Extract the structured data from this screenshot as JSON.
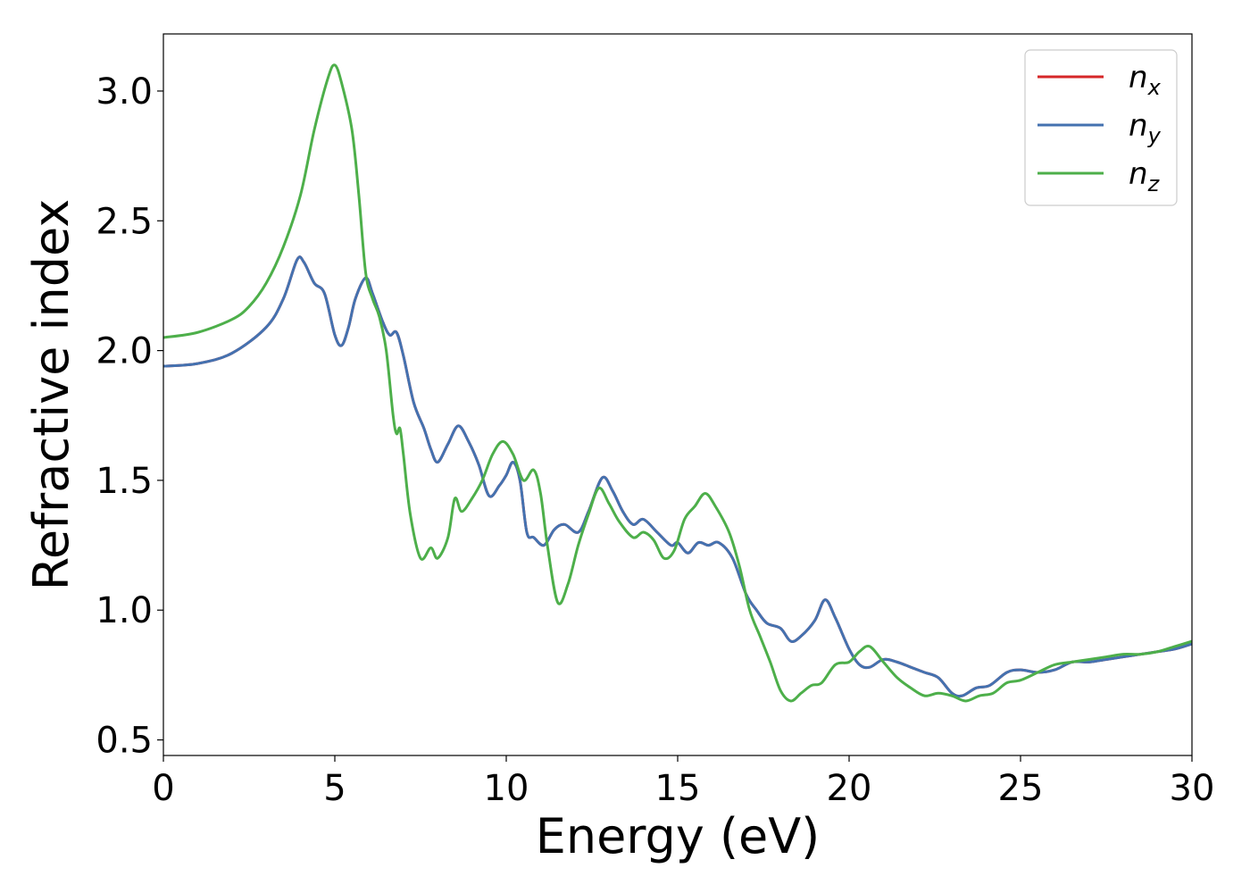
{
  "chart_data": {
    "type": "line",
    "title": "",
    "xlabel": "Energy (eV)",
    "ylabel": "Refractive index",
    "xlim": [
      0,
      30
    ],
    "ylim": [
      0.44,
      3.22
    ],
    "xticks": [
      0,
      5,
      10,
      15,
      20,
      25,
      30
    ],
    "yticks": [
      0.5,
      1.0,
      1.5,
      2.0,
      2.5,
      3.0
    ],
    "xtick_labels": [
      "0",
      "5",
      "10",
      "15",
      "20",
      "25",
      "30"
    ],
    "ytick_labels": [
      "0.5",
      "1.0",
      "1.5",
      "2.0",
      "2.5",
      "3.0"
    ],
    "grid": false,
    "legend_position": "top-right",
    "series": [
      {
        "name": "n",
        "subscript": "x",
        "color": "#d62728",
        "points": [
          [
            0,
            1.94
          ],
          [
            1,
            1.95
          ],
          [
            2,
            1.99
          ],
          [
            3,
            2.09
          ],
          [
            3.5,
            2.2
          ],
          [
            3.9,
            2.35
          ],
          [
            4.1,
            2.34
          ],
          [
            4.4,
            2.26
          ],
          [
            4.7,
            2.22
          ],
          [
            5.0,
            2.06
          ],
          [
            5.2,
            2.02
          ],
          [
            5.4,
            2.09
          ],
          [
            5.6,
            2.2
          ],
          [
            5.9,
            2.28
          ],
          [
            6.1,
            2.22
          ],
          [
            6.4,
            2.11
          ],
          [
            6.6,
            2.06
          ],
          [
            6.8,
            2.07
          ],
          [
            7.0,
            1.98
          ],
          [
            7.3,
            1.8
          ],
          [
            7.6,
            1.7
          ],
          [
            7.8,
            1.62
          ],
          [
            8.0,
            1.57
          ],
          [
            8.3,
            1.64
          ],
          [
            8.6,
            1.71
          ],
          [
            8.9,
            1.65
          ],
          [
            9.2,
            1.56
          ],
          [
            9.5,
            1.44
          ],
          [
            9.8,
            1.48
          ],
          [
            10.0,
            1.52
          ],
          [
            10.2,
            1.57
          ],
          [
            10.4,
            1.5
          ],
          [
            10.6,
            1.3
          ],
          [
            10.8,
            1.28
          ],
          [
            11.1,
            1.25
          ],
          [
            11.4,
            1.31
          ],
          [
            11.7,
            1.33
          ],
          [
            12.1,
            1.3
          ],
          [
            12.4,
            1.38
          ],
          [
            12.8,
            1.51
          ],
          [
            13.1,
            1.46
          ],
          [
            13.4,
            1.38
          ],
          [
            13.7,
            1.33
          ],
          [
            14.0,
            1.35
          ],
          [
            14.4,
            1.3
          ],
          [
            14.8,
            1.25
          ],
          [
            15.0,
            1.26
          ],
          [
            15.3,
            1.22
          ],
          [
            15.6,
            1.26
          ],
          [
            15.9,
            1.25
          ],
          [
            16.2,
            1.26
          ],
          [
            16.6,
            1.2
          ],
          [
            17.0,
            1.06
          ],
          [
            17.3,
            1.0
          ],
          [
            17.6,
            0.95
          ],
          [
            18.0,
            0.93
          ],
          [
            18.3,
            0.88
          ],
          [
            18.6,
            0.9
          ],
          [
            19.0,
            0.96
          ],
          [
            19.3,
            1.04
          ],
          [
            19.6,
            0.97
          ],
          [
            20.0,
            0.85
          ],
          [
            20.3,
            0.79
          ],
          [
            20.6,
            0.78
          ],
          [
            21.0,
            0.81
          ],
          [
            21.4,
            0.8
          ],
          [
            21.8,
            0.78
          ],
          [
            22.2,
            0.76
          ],
          [
            22.6,
            0.74
          ],
          [
            23.0,
            0.68
          ],
          [
            23.3,
            0.67
          ],
          [
            23.7,
            0.7
          ],
          [
            24.1,
            0.71
          ],
          [
            24.6,
            0.76
          ],
          [
            25.0,
            0.77
          ],
          [
            25.5,
            0.76
          ],
          [
            26.0,
            0.77
          ],
          [
            26.5,
            0.8
          ],
          [
            27.0,
            0.8
          ],
          [
            27.5,
            0.81
          ],
          [
            28.0,
            0.82
          ],
          [
            28.5,
            0.83
          ],
          [
            29.0,
            0.84
          ],
          [
            29.5,
            0.85
          ],
          [
            30.0,
            0.87
          ]
        ]
      },
      {
        "name": "n",
        "subscript": "y",
        "color": "#4472b0",
        "points": [
          [
            0,
            1.94
          ],
          [
            1,
            1.95
          ],
          [
            2,
            1.99
          ],
          [
            3,
            2.09
          ],
          [
            3.5,
            2.2
          ],
          [
            3.9,
            2.35
          ],
          [
            4.1,
            2.34
          ],
          [
            4.4,
            2.26
          ],
          [
            4.7,
            2.22
          ],
          [
            5.0,
            2.06
          ],
          [
            5.2,
            2.02
          ],
          [
            5.4,
            2.09
          ],
          [
            5.6,
            2.2
          ],
          [
            5.9,
            2.28
          ],
          [
            6.1,
            2.22
          ],
          [
            6.4,
            2.11
          ],
          [
            6.6,
            2.06
          ],
          [
            6.8,
            2.07
          ],
          [
            7.0,
            1.98
          ],
          [
            7.3,
            1.8
          ],
          [
            7.6,
            1.7
          ],
          [
            7.8,
            1.62
          ],
          [
            8.0,
            1.57
          ],
          [
            8.3,
            1.64
          ],
          [
            8.6,
            1.71
          ],
          [
            8.9,
            1.65
          ],
          [
            9.2,
            1.56
          ],
          [
            9.5,
            1.44
          ],
          [
            9.8,
            1.48
          ],
          [
            10.0,
            1.52
          ],
          [
            10.2,
            1.57
          ],
          [
            10.4,
            1.5
          ],
          [
            10.6,
            1.3
          ],
          [
            10.8,
            1.28
          ],
          [
            11.1,
            1.25
          ],
          [
            11.4,
            1.31
          ],
          [
            11.7,
            1.33
          ],
          [
            12.1,
            1.3
          ],
          [
            12.4,
            1.38
          ],
          [
            12.8,
            1.51
          ],
          [
            13.1,
            1.46
          ],
          [
            13.4,
            1.38
          ],
          [
            13.7,
            1.33
          ],
          [
            14.0,
            1.35
          ],
          [
            14.4,
            1.3
          ],
          [
            14.8,
            1.25
          ],
          [
            15.0,
            1.26
          ],
          [
            15.3,
            1.22
          ],
          [
            15.6,
            1.26
          ],
          [
            15.9,
            1.25
          ],
          [
            16.2,
            1.26
          ],
          [
            16.6,
            1.2
          ],
          [
            17.0,
            1.06
          ],
          [
            17.3,
            1.0
          ],
          [
            17.6,
            0.95
          ],
          [
            18.0,
            0.93
          ],
          [
            18.3,
            0.88
          ],
          [
            18.6,
            0.9
          ],
          [
            19.0,
            0.96
          ],
          [
            19.3,
            1.04
          ],
          [
            19.6,
            0.97
          ],
          [
            20.0,
            0.85
          ],
          [
            20.3,
            0.79
          ],
          [
            20.6,
            0.78
          ],
          [
            21.0,
            0.81
          ],
          [
            21.4,
            0.8
          ],
          [
            21.8,
            0.78
          ],
          [
            22.2,
            0.76
          ],
          [
            22.6,
            0.74
          ],
          [
            23.0,
            0.68
          ],
          [
            23.3,
            0.67
          ],
          [
            23.7,
            0.7
          ],
          [
            24.1,
            0.71
          ],
          [
            24.6,
            0.76
          ],
          [
            25.0,
            0.77
          ],
          [
            25.5,
            0.76
          ],
          [
            26.0,
            0.77
          ],
          [
            26.5,
            0.8
          ],
          [
            27.0,
            0.8
          ],
          [
            27.5,
            0.81
          ],
          [
            28.0,
            0.82
          ],
          [
            28.5,
            0.83
          ],
          [
            29.0,
            0.84
          ],
          [
            29.5,
            0.85
          ],
          [
            30.0,
            0.87
          ]
        ]
      },
      {
        "name": "n",
        "subscript": "z",
        "color": "#4daf4a",
        "points": [
          [
            0,
            2.05
          ],
          [
            1,
            2.07
          ],
          [
            2,
            2.12
          ],
          [
            2.5,
            2.17
          ],
          [
            3,
            2.26
          ],
          [
            3.5,
            2.4
          ],
          [
            4.0,
            2.6
          ],
          [
            4.4,
            2.85
          ],
          [
            4.8,
            3.05
          ],
          [
            5.0,
            3.1
          ],
          [
            5.2,
            3.03
          ],
          [
            5.5,
            2.85
          ],
          [
            5.7,
            2.6
          ],
          [
            5.9,
            2.3
          ],
          [
            6.1,
            2.2
          ],
          [
            6.3,
            2.13
          ],
          [
            6.5,
            2.0
          ],
          [
            6.7,
            1.75
          ],
          [
            6.8,
            1.68
          ],
          [
            6.9,
            1.7
          ],
          [
            7.0,
            1.6
          ],
          [
            7.2,
            1.37
          ],
          [
            7.5,
            1.2
          ],
          [
            7.8,
            1.24
          ],
          [
            8.0,
            1.2
          ],
          [
            8.3,
            1.28
          ],
          [
            8.5,
            1.43
          ],
          [
            8.7,
            1.38
          ],
          [
            9.0,
            1.43
          ],
          [
            9.3,
            1.5
          ],
          [
            9.6,
            1.6
          ],
          [
            9.9,
            1.65
          ],
          [
            10.2,
            1.6
          ],
          [
            10.5,
            1.5
          ],
          [
            10.8,
            1.54
          ],
          [
            11.0,
            1.45
          ],
          [
            11.2,
            1.25
          ],
          [
            11.5,
            1.03
          ],
          [
            11.8,
            1.1
          ],
          [
            12.1,
            1.25
          ],
          [
            12.4,
            1.37
          ],
          [
            12.7,
            1.47
          ],
          [
            13.0,
            1.41
          ],
          [
            13.3,
            1.34
          ],
          [
            13.7,
            1.28
          ],
          [
            14.0,
            1.3
          ],
          [
            14.3,
            1.27
          ],
          [
            14.6,
            1.2
          ],
          [
            14.9,
            1.23
          ],
          [
            15.2,
            1.35
          ],
          [
            15.5,
            1.4
          ],
          [
            15.8,
            1.45
          ],
          [
            16.1,
            1.4
          ],
          [
            16.5,
            1.3
          ],
          [
            16.8,
            1.17
          ],
          [
            17.1,
            1.0
          ],
          [
            17.4,
            0.9
          ],
          [
            17.7,
            0.8
          ],
          [
            18.0,
            0.69
          ],
          [
            18.3,
            0.65
          ],
          [
            18.6,
            0.68
          ],
          [
            18.9,
            0.71
          ],
          [
            19.2,
            0.72
          ],
          [
            19.6,
            0.79
          ],
          [
            20.0,
            0.8
          ],
          [
            20.3,
            0.84
          ],
          [
            20.6,
            0.86
          ],
          [
            21.0,
            0.8
          ],
          [
            21.4,
            0.74
          ],
          [
            21.8,
            0.7
          ],
          [
            22.2,
            0.67
          ],
          [
            22.6,
            0.68
          ],
          [
            23.0,
            0.67
          ],
          [
            23.4,
            0.65
          ],
          [
            23.8,
            0.67
          ],
          [
            24.2,
            0.68
          ],
          [
            24.6,
            0.72
          ],
          [
            25.0,
            0.73
          ],
          [
            25.5,
            0.76
          ],
          [
            26.0,
            0.79
          ],
          [
            26.5,
            0.8
          ],
          [
            27.0,
            0.81
          ],
          [
            27.5,
            0.82
          ],
          [
            28.0,
            0.83
          ],
          [
            28.5,
            0.83
          ],
          [
            29.0,
            0.84
          ],
          [
            29.5,
            0.86
          ],
          [
            30.0,
            0.88
          ]
        ]
      }
    ]
  }
}
